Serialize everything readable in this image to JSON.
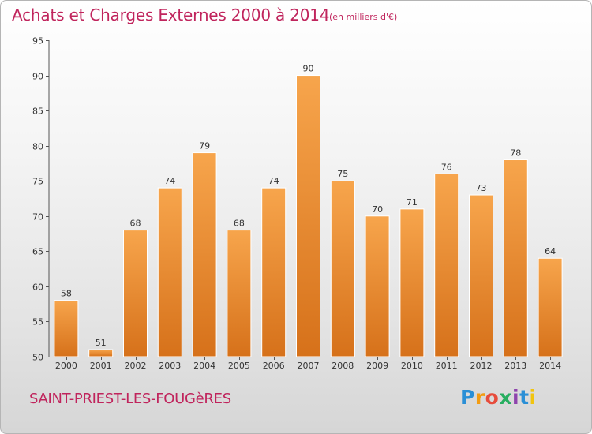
{
  "header": {
    "title": "Achats et Charges Externes 2000 à 2014",
    "subtitle": "(en milliers d'€)"
  },
  "footer": {
    "commune": "SAINT-PRIEST-LES-FOUGèRES",
    "logo_letters": [
      "P",
      "r",
      "o",
      "x",
      "i",
      "t",
      "i"
    ]
  },
  "colors": {
    "title": "#c0245c",
    "bar_top": "#f7a54c",
    "bar_bottom": "#d6711a"
  },
  "chart_data": {
    "type": "bar",
    "title": "Achats et Charges Externes 2000 à 2014",
    "subtitle": "(en milliers d'€)",
    "xlabel": "",
    "ylabel": "",
    "ylim": [
      50,
      95
    ],
    "yticks": [
      50,
      55,
      60,
      65,
      70,
      75,
      80,
      85,
      90,
      95
    ],
    "grid": false,
    "categories": [
      "2000",
      "2001",
      "2002",
      "2003",
      "2004",
      "2005",
      "2006",
      "2007",
      "2008",
      "2009",
      "2010",
      "2011",
      "2012",
      "2013",
      "2014"
    ],
    "values": [
      58,
      51,
      68,
      74,
      79,
      68,
      74,
      90,
      75,
      70,
      71,
      76,
      73,
      78,
      64
    ]
  }
}
